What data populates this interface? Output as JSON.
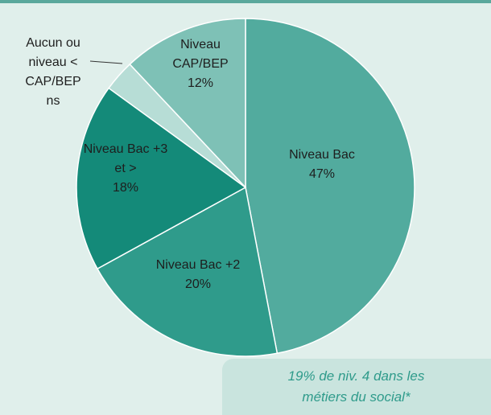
{
  "chart_data": {
    "type": "pie",
    "categories": [
      "Niveau Bac",
      "Niveau Bac +2",
      "Niveau Bac +3 et >",
      "Aucun ou niveau < CAP/BEP",
      "Niveau CAP/BEP"
    ],
    "values": [
      47,
      20,
      18,
      3,
      12
    ],
    "value_labels": [
      "47%",
      "20%",
      "18%",
      "ns",
      "12%"
    ],
    "colors": [
      "#52ab9e",
      "#2f9b8b",
      "#148a79",
      "#b7ddd6",
      "#7ec1b6"
    ],
    "annotation": "19% de niv. 4 dans les métiers du social*"
  }
}
